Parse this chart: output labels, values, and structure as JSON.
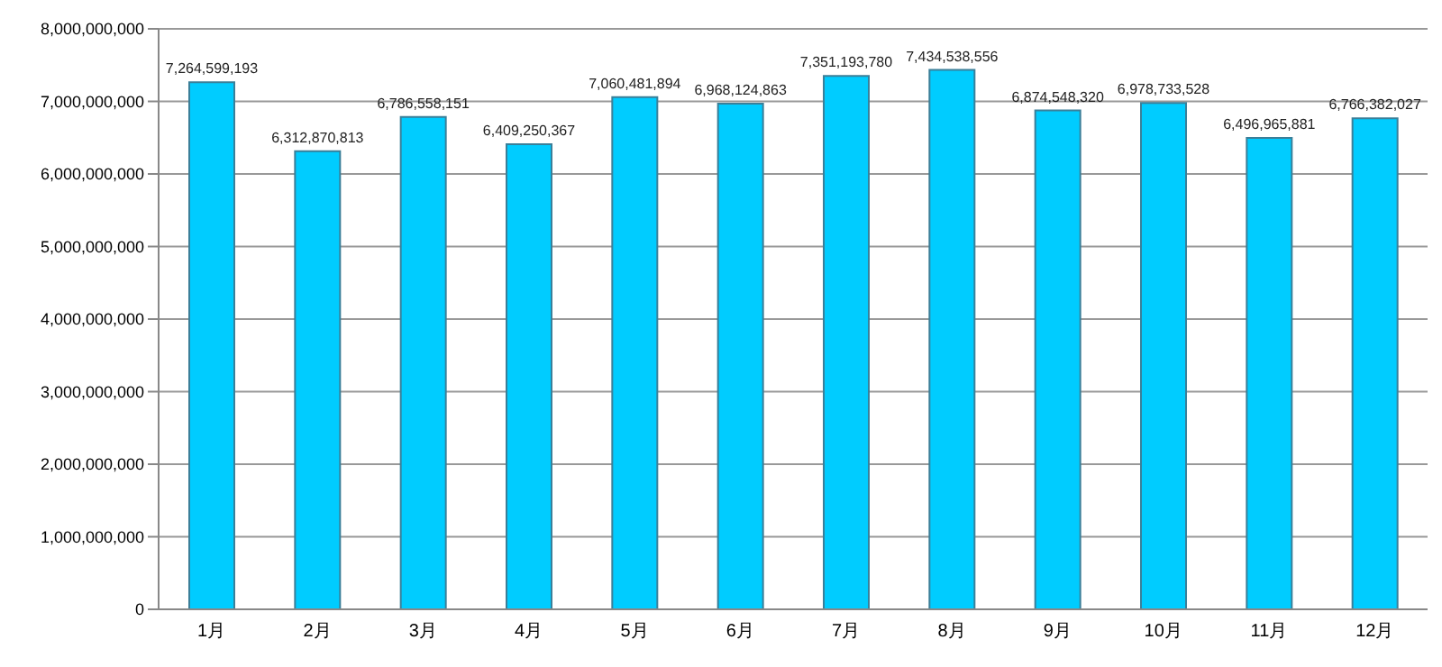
{
  "chart_data": {
    "type": "bar",
    "categories": [
      "1月",
      "2月",
      "3月",
      "4月",
      "5月",
      "6月",
      "7月",
      "8月",
      "9月",
      "10月",
      "11月",
      "12月"
    ],
    "values": [
      7264599193,
      6312870813,
      6786558151,
      6409250367,
      7060481894,
      6968124863,
      7351193780,
      7434538556,
      6874548320,
      6978733528,
      6496965881,
      6766382027
    ],
    "value_labels": [
      "7,264,599,193",
      "6,312,870,813",
      "6,786,558,151",
      "6,409,250,367",
      "7,060,481,894",
      "6,968,124,863",
      "7,351,193,780",
      "7,434,538,556",
      "6,874,548,320",
      "6,978,733,528",
      "6,496,965,881",
      "6,766,382,027"
    ],
    "color": "#00ccff",
    "ylim": [
      0,
      8000000000
    ],
    "yticks": [
      0,
      {
        "value": 1000000000,
        "label": "1,000,000,000"
      },
      {
        "value": 2000000000,
        "label": "2,000,000,000"
      },
      {
        "value": 3000000000,
        "label": "3,000,000,000"
      },
      {
        "value": 4000000000,
        "label": "4,000,000,000"
      },
      {
        "value": 5000000000,
        "label": "5,000,000,000"
      },
      {
        "value": 6000000000,
        "label": "6,000,000,000"
      },
      {
        "value": 7000000000,
        "label": "7,000,000,000"
      },
      {
        "value": 8000000000,
        "label": "8,000,000,000"
      }
    ],
    "grid": "y"
  }
}
